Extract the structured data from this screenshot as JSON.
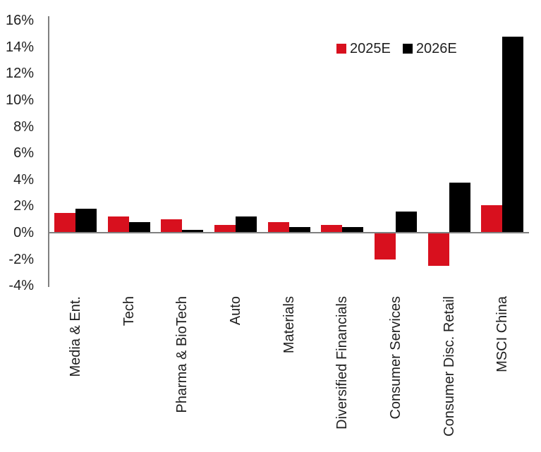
{
  "chart_data": {
    "type": "bar",
    "title": "",
    "categories": [
      "Media & Ent.",
      "Tech",
      "Pharma & BioTech",
      "Auto",
      "Materials",
      "Diversified Financials",
      "Consumer Services",
      "Consumer Disc. Retail",
      "MSCI China"
    ],
    "series": [
      {
        "name": "2025E",
        "color": "#d8101e",
        "values": [
          1.5,
          1.2,
          1.0,
          0.6,
          0.8,
          0.6,
          -2.0,
          -2.5,
          2.1
        ]
      },
      {
        "name": "2026E",
        "color": "#000000",
        "values": [
          1.8,
          0.8,
          0.2,
          1.2,
          0.4,
          0.4,
          1.6,
          3.8,
          14.8
        ]
      }
    ],
    "xlabel": "",
    "ylabel": "",
    "ylim": [
      -4,
      16
    ],
    "ytick_step": 2,
    "ytick_suffix": "%",
    "grid": false,
    "legend_position": "top-right",
    "axis_color": "#808080",
    "text_color": "#1f1f1f",
    "background_color": "#ffffff"
  }
}
